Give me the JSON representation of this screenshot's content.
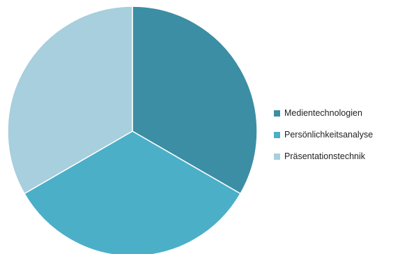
{
  "chart_data": {
    "type": "pie",
    "categories": [
      "Medientechnologien",
      "Persönlichkeitsanalyse",
      "Präsentationstechnik"
    ],
    "values": [
      33.3,
      33.3,
      33.3
    ],
    "colors": [
      "#3c8ea4",
      "#4bafc8",
      "#a7cfdd"
    ],
    "start_angle_deg": 0,
    "direction": "clockwise",
    "title": "",
    "legend_position": "right"
  },
  "legend": {
    "items": [
      {
        "label": "Medientechnologien",
        "color": "#3c8ea4"
      },
      {
        "label": "Persönlichkeitsanalyse",
        "color": "#4bafc8"
      },
      {
        "label": "Präsentationstechnik",
        "color": "#a7cfdd"
      }
    ]
  }
}
